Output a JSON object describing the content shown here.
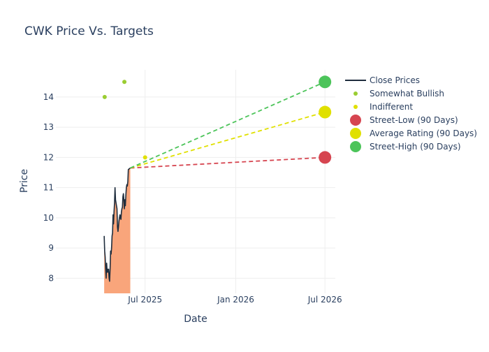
{
  "chart_data": {
    "type": "line",
    "title": "CWK Price Vs. Targets",
    "xlabel": "Date",
    "ylabel": "Price",
    "xlim": [
      "2025-01-01",
      "2026-07-22"
    ],
    "ylim": [
      7.5,
      14.9
    ],
    "x_ticks": [
      {
        "date": "2025-07-01",
        "label": "Jul 2025"
      },
      {
        "date": "2026-01-01",
        "label": "Jan 2026"
      },
      {
        "date": "2026-07-01",
        "label": "Jul 2026"
      }
    ],
    "y_ticks": [
      8,
      9,
      10,
      11,
      12,
      13,
      14
    ],
    "grid": true,
    "legend_position": "right",
    "colors": {
      "close": "#1f2d3d",
      "close_fill": "#f9a57b",
      "somewhat_bullish": "#9acd32",
      "indifferent": "#e0e000",
      "street_low": "#d64550",
      "average": "#e0e000",
      "street_high": "#4cc45a"
    },
    "series": [
      {
        "name": "Close Prices",
        "kind": "line",
        "points": [
          [
            "2025-04-09",
            9.4
          ],
          [
            "2025-04-10",
            8.9
          ],
          [
            "2025-04-11",
            8.7
          ],
          [
            "2025-04-12",
            8.3
          ],
          [
            "2025-04-13",
            8.0
          ],
          [
            "2025-04-14",
            8.5
          ],
          [
            "2025-04-15",
            8.2
          ],
          [
            "2025-04-16",
            8.3
          ],
          [
            "2025-04-17",
            8.2
          ],
          [
            "2025-04-18",
            8.3
          ],
          [
            "2025-04-19",
            8.0
          ],
          [
            "2025-04-20",
            7.9
          ],
          [
            "2025-04-21",
            8.3
          ],
          [
            "2025-04-22",
            8.9
          ],
          [
            "2025-04-23",
            8.8
          ],
          [
            "2025-04-24",
            9.0
          ],
          [
            "2025-04-25",
            9.4
          ],
          [
            "2025-04-26",
            9.5
          ],
          [
            "2025-04-27",
            10.1
          ],
          [
            "2025-04-28",
            9.8
          ],
          [
            "2025-04-29",
            10.2
          ],
          [
            "2025-04-30",
            10.5
          ],
          [
            "2025-05-01",
            11.0
          ],
          [
            "2025-05-02",
            10.6
          ],
          [
            "2025-05-03",
            10.5
          ],
          [
            "2025-05-04",
            10.4
          ],
          [
            "2025-05-05",
            10.3
          ],
          [
            "2025-05-06",
            9.7
          ],
          [
            "2025-05-07",
            9.55
          ],
          [
            "2025-05-08",
            9.7
          ],
          [
            "2025-05-09",
            9.9
          ],
          [
            "2025-05-10",
            10.0
          ],
          [
            "2025-05-11",
            10.1
          ],
          [
            "2025-05-12",
            10.0
          ],
          [
            "2025-05-13",
            9.95
          ],
          [
            "2025-05-14",
            10.2
          ],
          [
            "2025-05-15",
            10.3
          ],
          [
            "2025-05-16",
            10.35
          ],
          [
            "2025-05-17",
            10.7
          ],
          [
            "2025-05-18",
            10.8
          ],
          [
            "2025-05-19",
            10.6
          ],
          [
            "2025-05-20",
            10.3
          ],
          [
            "2025-05-21",
            10.6
          ],
          [
            "2025-05-22",
            10.4
          ],
          [
            "2025-05-23",
            10.75
          ],
          [
            "2025-05-24",
            11.0
          ],
          [
            "2025-05-25",
            11.1
          ],
          [
            "2025-05-26",
            11.05
          ],
          [
            "2025-05-27",
            11.2
          ],
          [
            "2025-05-28",
            11.6
          ],
          [
            "2025-06-01",
            11.65
          ]
        ]
      },
      {
        "name": "Somewhat Bullish",
        "kind": "marker",
        "points": [
          [
            "2025-04-10",
            14.0
          ],
          [
            "2025-05-20",
            14.5
          ]
        ]
      },
      {
        "name": "Indifferent",
        "kind": "marker",
        "points": [
          [
            "2025-07-01",
            12.0
          ]
        ]
      },
      {
        "name": "Street-Low (90 Days)",
        "kind": "target",
        "points": [
          [
            "2025-06-01",
            11.65
          ],
          [
            "2026-07-01",
            12.0
          ]
        ]
      },
      {
        "name": "Average Rating (90 Days)",
        "kind": "target",
        "points": [
          [
            "2025-06-01",
            11.65
          ],
          [
            "2026-07-01",
            13.5
          ]
        ]
      },
      {
        "name": "Street-High (90 Days)",
        "kind": "target",
        "points": [
          [
            "2025-06-01",
            11.65
          ],
          [
            "2026-07-01",
            14.5
          ]
        ]
      }
    ]
  }
}
